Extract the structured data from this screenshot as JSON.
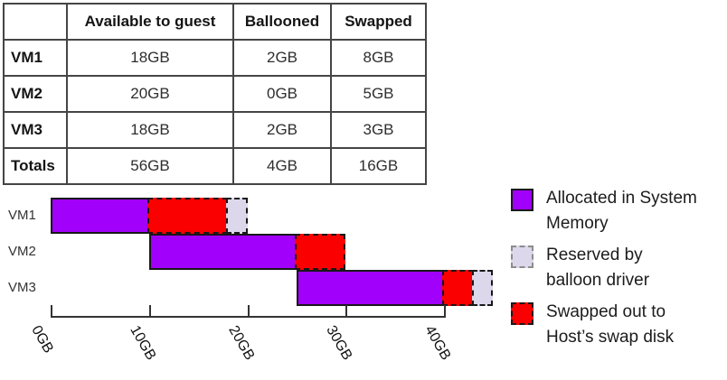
{
  "table": {
    "columns": [
      "",
      "Available to guest",
      "Ballooned",
      "Swapped"
    ],
    "rows": [
      {
        "label": "VM1",
        "values": [
          "18GB",
          "2GB",
          "8GB"
        ]
      },
      {
        "label": "VM2",
        "values": [
          "20GB",
          "0GB",
          "5GB"
        ]
      },
      {
        "label": "VM3",
        "values": [
          "18GB",
          "2GB",
          "3GB"
        ]
      },
      {
        "label": "Totals",
        "values": [
          "56GB",
          "4GB",
          "16GB"
        ]
      }
    ]
  },
  "chart_data": {
    "type": "bar",
    "orientation": "horizontal",
    "unit": "GB",
    "categories": [
      "VM1",
      "VM2",
      "VM3"
    ],
    "bar_offsets_gb": [
      0,
      10,
      25
    ],
    "series": [
      {
        "name": "Allocated in System Memory",
        "values_gb": [
          10,
          15,
          15
        ],
        "color": "#A100FA",
        "border": "solid"
      },
      {
        "name": "Swapped out to Host’s swap disk",
        "values_gb": [
          8,
          5,
          3
        ],
        "color": "#FA0000",
        "border": "dashed"
      },
      {
        "name": "Reserved by balloon driver",
        "values_gb": [
          2,
          0,
          2
        ],
        "color": "#DCD7EA",
        "border": "dashed"
      }
    ],
    "x_tick_labels": [
      "0GB",
      "10GB",
      "20GB",
      "30GB",
      "40GB"
    ],
    "x_tick_values": [
      0,
      10,
      20,
      30,
      40
    ],
    "xlim": [
      0,
      45
    ],
    "grid": false,
    "legend_position": "right"
  },
  "legend": {
    "items": [
      {
        "label": "Allocated in System\nMemory",
        "color": "#A100FA",
        "border": "solid",
        "border_color": "#1A1A1A"
      },
      {
        "label": "Reserved by\nballoon driver",
        "color": "#DCD7EA",
        "border": "dashed",
        "border_color": "#8C8C8C"
      },
      {
        "label": "Swapped out to\nHost’s swap disk",
        "color": "#FA0000",
        "border": "dashed",
        "border_color": "#1A1A1A"
      }
    ]
  }
}
